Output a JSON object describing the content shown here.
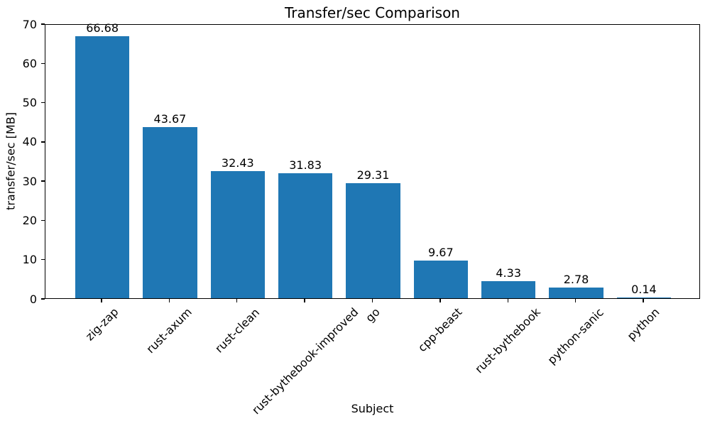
{
  "chart_data": {
    "type": "bar",
    "title": "Transfer/sec Comparison",
    "xlabel": "Subject",
    "ylabel": "transfer/sec [MB]",
    "categories": [
      "zig-zap",
      "rust-axum",
      "rust-clean",
      "rust-bythebook-improved",
      "go",
      "cpp-beast",
      "rust-bythebook",
      "python-sanic",
      "python"
    ],
    "values": [
      66.68,
      43.67,
      32.43,
      31.83,
      29.31,
      9.67,
      4.33,
      2.78,
      0.14
    ],
    "bar_labels": [
      "66.68",
      "43.67",
      "32.43",
      "31.83",
      "29.31",
      "9.67",
      "4.33",
      "2.78",
      "0.14"
    ],
    "ylim": [
      0,
      70
    ],
    "yticks": [
      0,
      10,
      20,
      30,
      40,
      50,
      60,
      70
    ],
    "bar_color": "#1f77b4",
    "axis_color": "#000000",
    "text_color": "#000000",
    "background_color": "#ffffff",
    "grid": false,
    "legend_position": "none",
    "x_tick_rotation_deg": 45
  }
}
